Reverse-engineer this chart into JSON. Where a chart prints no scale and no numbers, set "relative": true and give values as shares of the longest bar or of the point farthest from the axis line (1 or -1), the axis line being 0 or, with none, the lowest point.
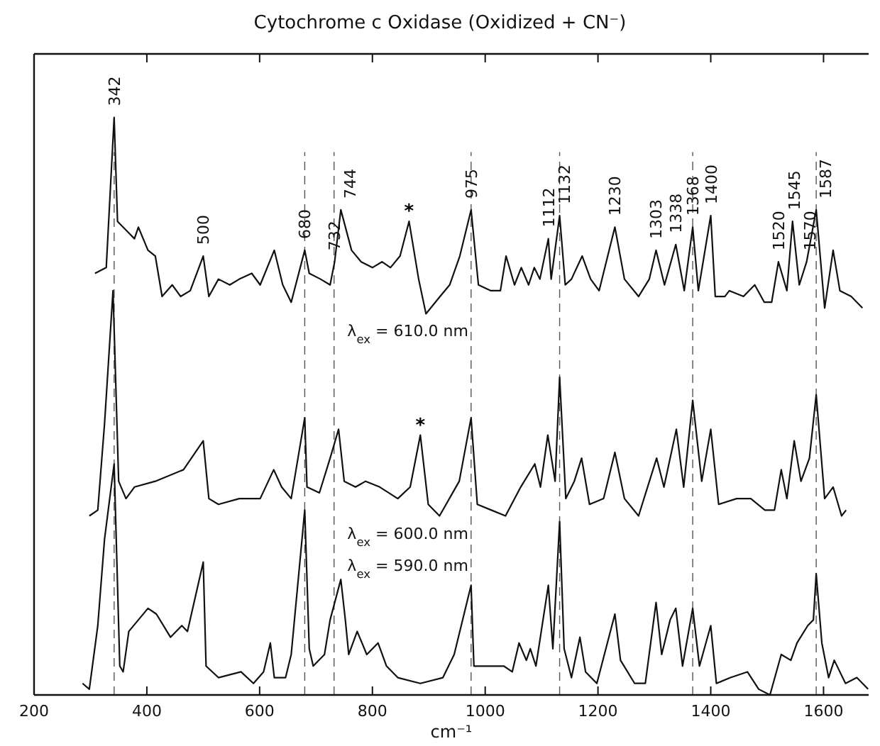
{
  "chart_data": {
    "type": "line",
    "title": "Cytochrome c Oxidase (Oxidized + CN⁻)",
    "xlabel": "cm⁻¹",
    "relative": true,
    "xlim": [
      200,
      1680
    ],
    "xticks": [
      200,
      400,
      600,
      800,
      1000,
      1200,
      1400,
      1600
    ],
    "grid": false,
    "marker": "none",
    "line_style": "solid",
    "series": [
      {
        "name": "λ$_{ex}$ = 610.0 nm",
        "color": "#111111",
        "x": [
          308,
          328,
          342,
          348,
          368,
          378,
          385,
          402,
          415,
          427,
          445,
          460,
          477,
          500,
          510,
          527,
          547,
          564,
          586,
          601,
          626,
          641,
          656,
          680,
          688,
          708,
          725,
          733,
          744,
          763,
          780,
          800,
          817,
          832,
          849,
          865,
          882,
          895,
          920,
          937,
          955,
          975,
          988,
          1010,
          1027,
          1037,
          1052,
          1064,
          1077,
          1087,
          1097,
          1112,
          1117,
          1132,
          1142,
          1153,
          1172,
          1187,
          1202,
          1230,
          1247,
          1272,
          1291,
          1303,
          1318,
          1338,
          1353,
          1368,
          1378,
          1400,
          1408,
          1425,
          1433,
          1458,
          1478,
          1495,
          1508,
          1520,
          1535,
          1545,
          1557,
          1570,
          1587,
          1602,
          1617,
          1629,
          1649,
          1669
        ],
        "values": [
          0.73,
          0.74,
          1.0,
          0.82,
          0.8,
          0.79,
          0.81,
          0.77,
          0.76,
          0.69,
          0.71,
          0.69,
          0.7,
          0.76,
          0.69,
          0.72,
          0.71,
          0.72,
          0.73,
          0.71,
          0.77,
          0.71,
          0.68,
          0.77,
          0.73,
          0.72,
          0.71,
          0.75,
          0.84,
          0.77,
          0.75,
          0.74,
          0.75,
          0.74,
          0.76,
          0.82,
          0.72,
          0.66,
          0.69,
          0.71,
          0.76,
          0.84,
          0.71,
          0.7,
          0.7,
          0.76,
          0.71,
          0.74,
          0.71,
          0.74,
          0.72,
          0.79,
          0.72,
          0.83,
          0.71,
          0.72,
          0.76,
          0.72,
          0.7,
          0.81,
          0.72,
          0.69,
          0.72,
          0.77,
          0.71,
          0.78,
          0.7,
          0.81,
          0.7,
          0.83,
          0.69,
          0.69,
          0.7,
          0.69,
          0.71,
          0.68,
          0.68,
          0.75,
          0.7,
          0.82,
          0.71,
          0.75,
          0.84,
          0.67,
          0.77,
          0.7,
          0.69,
          0.67
        ]
      },
      {
        "name": "λ$_{ex}$ = 600.0 nm",
        "color": "#111111",
        "x": [
          298,
          313,
          325,
          340,
          350,
          363,
          378,
          415,
          465,
          500,
          510,
          527,
          564,
          601,
          625,
          639,
          656,
          680,
          684,
          706,
          725,
          740,
          750,
          770,
          788,
          813,
          845,
          867,
          885,
          899,
          919,
          954,
          975,
          986,
          1011,
          1036,
          1063,
          1088,
          1098,
          1111,
          1124,
          1132,
          1143,
          1158,
          1171,
          1185,
          1210,
          1230,
          1247,
          1272,
          1304,
          1317,
          1339,
          1352,
          1368,
          1384,
          1400,
          1414,
          1446,
          1471,
          1496,
          1513,
          1525,
          1535,
          1548,
          1560,
          1575,
          1587,
          1602,
          1617,
          1632,
          1640
        ],
        "values": [
          0.31,
          0.32,
          0.47,
          0.7,
          0.37,
          0.34,
          0.36,
          0.37,
          0.39,
          0.44,
          0.34,
          0.33,
          0.34,
          0.34,
          0.39,
          0.36,
          0.34,
          0.48,
          0.36,
          0.35,
          0.41,
          0.46,
          0.37,
          0.36,
          0.37,
          0.36,
          0.34,
          0.36,
          0.45,
          0.33,
          0.31,
          0.37,
          0.48,
          0.33,
          0.32,
          0.31,
          0.36,
          0.4,
          0.36,
          0.45,
          0.37,
          0.55,
          0.34,
          0.37,
          0.41,
          0.33,
          0.34,
          0.42,
          0.34,
          0.31,
          0.41,
          0.36,
          0.46,
          0.36,
          0.51,
          0.37,
          0.46,
          0.33,
          0.34,
          0.34,
          0.32,
          0.32,
          0.39,
          0.34,
          0.44,
          0.37,
          0.41,
          0.52,
          0.34,
          0.36,
          0.31,
          0.32
        ]
      },
      {
        "name": "λ$_{ex}$ = 590.0 nm",
        "color": "#111111",
        "x": [
          286,
          298,
          313,
          325,
          342,
          352,
          358,
          368,
          402,
          417,
          442,
          462,
          472,
          500,
          505,
          527,
          567,
          589,
          607,
          619,
          626,
          646,
          656,
          680,
          688,
          695,
          715,
          725,
          744,
          752,
          758,
          773,
          790,
          810,
          825,
          845,
          885,
          925,
          945,
          975,
          980,
          1004,
          1033,
          1048,
          1060,
          1073,
          1080,
          1090,
          1112,
          1120,
          1132,
          1140,
          1153,
          1168,
          1178,
          1198,
          1230,
          1240,
          1265,
          1284,
          1303,
          1313,
          1328,
          1338,
          1350,
          1368,
          1380,
          1400,
          1410,
          1435,
          1465,
          1485,
          1505,
          1525,
          1542,
          1553,
          1572,
          1582,
          1587,
          1597,
          1609,
          1619,
          1639,
          1659,
          1679
        ],
        "values": [
          0.02,
          0.01,
          0.12,
          0.27,
          0.4,
          0.05,
          0.04,
          0.11,
          0.15,
          0.14,
          0.1,
          0.12,
          0.11,
          0.23,
          0.05,
          0.03,
          0.04,
          0.02,
          0.04,
          0.09,
          0.03,
          0.03,
          0.07,
          0.32,
          0.08,
          0.05,
          0.07,
          0.13,
          0.2,
          0.13,
          0.07,
          0.11,
          0.07,
          0.09,
          0.05,
          0.03,
          0.02,
          0.03,
          0.07,
          0.19,
          0.05,
          0.05,
          0.05,
          0.04,
          0.09,
          0.06,
          0.08,
          0.05,
          0.19,
          0.08,
          0.3,
          0.08,
          0.03,
          0.1,
          0.04,
          0.02,
          0.14,
          0.06,
          0.02,
          0.02,
          0.16,
          0.07,
          0.13,
          0.15,
          0.05,
          0.15,
          0.05,
          0.12,
          0.02,
          0.03,
          0.04,
          0.01,
          0.0,
          0.07,
          0.06,
          0.09,
          0.12,
          0.13,
          0.21,
          0.09,
          0.03,
          0.06,
          0.02,
          0.03,
          0.01
        ]
      }
    ],
    "ref_lines": [
      {
        "axis": "x",
        "value": 342,
        "color": "#555555",
        "line_style": "dashed"
      },
      {
        "axis": "x",
        "value": 680,
        "color": "#555555",
        "line_style": "dashed"
      },
      {
        "axis": "x",
        "value": 732,
        "color": "#555555",
        "line_style": "dashed"
      },
      {
        "axis": "x",
        "value": 975,
        "color": "#555555",
        "line_style": "dashed"
      },
      {
        "axis": "x",
        "value": 1132,
        "color": "#555555",
        "line_style": "dashed"
      },
      {
        "axis": "x",
        "value": 1368,
        "color": "#555555",
        "line_style": "dashed"
      },
      {
        "axis": "x",
        "value": 1587,
        "color": "#555555",
        "line_style": "dashed"
      }
    ],
    "annotations": [
      {
        "text": "342",
        "x": 342,
        "y": 1.0
      },
      {
        "text": "500",
        "x": 500,
        "y": 0.76
      },
      {
        "text": "680",
        "x": 680,
        "y": 0.77
      },
      {
        "text": "732",
        "x": 732,
        "y": 0.75
      },
      {
        "text": "744",
        "x": 744,
        "y": 0.84
      },
      {
        "text": "*",
        "x": 865,
        "y": 0.82
      },
      {
        "text": "975",
        "x": 975,
        "y": 0.84
      },
      {
        "text": "1112",
        "x": 1112,
        "y": 0.79
      },
      {
        "text": "1132",
        "x": 1132,
        "y": 0.83
      },
      {
        "text": "1230",
        "x": 1230,
        "y": 0.81
      },
      {
        "text": "1303",
        "x": 1303,
        "y": 0.77
      },
      {
        "text": "1338",
        "x": 1338,
        "y": 0.78
      },
      {
        "text": "1368",
        "x": 1368,
        "y": 0.81
      },
      {
        "text": "1400",
        "x": 1400,
        "y": 0.83
      },
      {
        "text": "1520",
        "x": 1520,
        "y": 0.75
      },
      {
        "text": "1545",
        "x": 1545,
        "y": 0.82
      },
      {
        "text": "1570",
        "x": 1570,
        "y": 0.75
      },
      {
        "text": "1587",
        "x": 1587,
        "y": 0.84
      },
      {
        "text": "*",
        "x": 885,
        "y": 0.45
      }
    ]
  }
}
